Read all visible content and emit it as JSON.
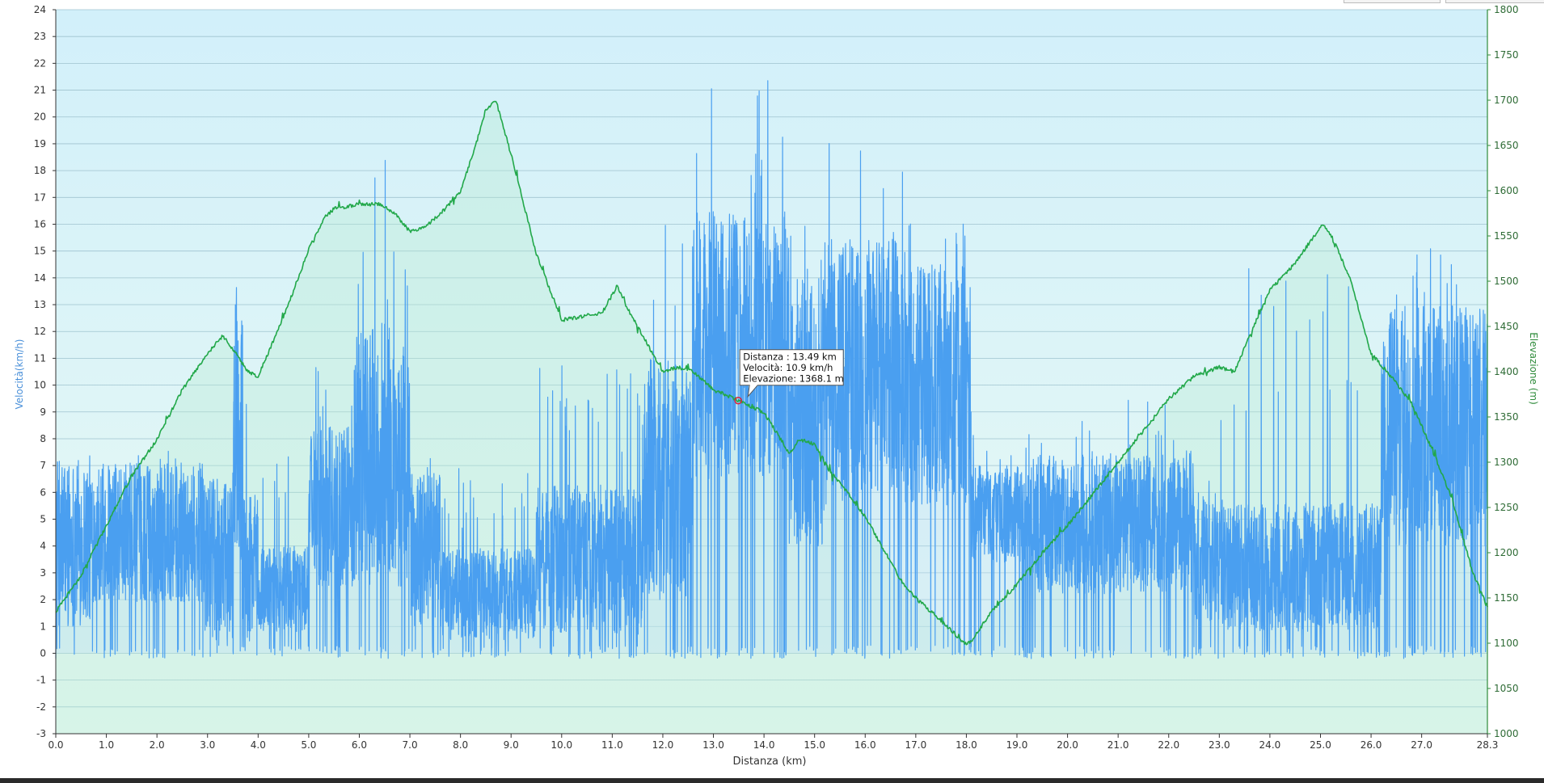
{
  "chart_data": {
    "type": "line",
    "xlabel": "Distanza  (km)",
    "ylabel_left": "Velocità(km/h)",
    "ylabel_right": "Elevazione (m)",
    "x_ticks": [
      "0.0",
      "1.0",
      "2.0",
      "3.0",
      "4.0",
      "5.0",
      "6.0",
      "7.0",
      "8.0",
      "9.0",
      "10.0",
      "11.0",
      "12.0",
      "13.0",
      "14.0",
      "15.0",
      "16.0",
      "17.0",
      "18.0",
      "19.0",
      "20.0",
      "21.0",
      "22.0",
      "23.0",
      "24.0",
      "25.0",
      "26.0",
      "27.0",
      "28.3"
    ],
    "xlim": [
      0,
      28.3
    ],
    "ylim_left": [
      -3,
      24
    ],
    "ylim_right": [
      1000,
      1800
    ],
    "grid": true,
    "colors": {
      "speed": "#4a9ff0",
      "elevation": "#22a84a",
      "plot_bg_top": "#d2f0fa",
      "plot_bg_bottom": "#e8f9f4",
      "left_axis": "#4a90d9",
      "right_axis": "#2e8b3a"
    },
    "series": [
      {
        "name": "Elevazione",
        "axis": "right",
        "x": [
          0,
          0.5,
          1,
          1.5,
          2,
          2.5,
          3,
          3.3,
          3.5,
          3.8,
          4,
          4.5,
          5,
          5.3,
          5.5,
          6,
          6.4,
          6.7,
          7,
          7.3,
          7.7,
          8,
          8.3,
          8.5,
          8.7,
          9,
          9.5,
          10,
          10.3,
          10.8,
          11.1,
          11.3,
          11.6,
          12,
          12.3,
          12.6,
          13,
          13.5,
          14,
          14.5,
          14.7,
          15,
          15.3,
          15.6,
          16,
          16.3,
          16.7,
          17,
          17.5,
          18,
          18.1,
          18.5,
          19,
          19.5,
          20,
          20.5,
          21,
          21.5,
          22,
          22.5,
          23,
          23.3,
          23.6,
          24,
          24.5,
          25,
          25.1,
          25.3,
          25.6,
          26,
          26.4,
          26.8,
          27.2,
          27.6,
          28,
          28.3
        ],
        "y": [
          1135,
          1175,
          1230,
          1285,
          1325,
          1380,
          1420,
          1440,
          1425,
          1400,
          1395,
          1460,
          1535,
          1570,
          1580,
          1585,
          1585,
          1575,
          1555,
          1560,
          1580,
          1600,
          1650,
          1690,
          1700,
          1640,
          1530,
          1457,
          1460,
          1465,
          1495,
          1470,
          1440,
          1400,
          1405,
          1400,
          1380,
          1368,
          1355,
          1310,
          1325,
          1320,
          1290,
          1270,
          1240,
          1210,
          1170,
          1150,
          1125,
          1098,
          1103,
          1135,
          1165,
          1200,
          1230,
          1265,
          1300,
          1335,
          1370,
          1395,
          1405,
          1400,
          1440,
          1490,
          1520,
          1560,
          1560,
          1540,
          1500,
          1420,
          1395,
          1365,
          1315,
          1260,
          1180,
          1140
        ]
      },
      {
        "name": "Velocità",
        "axis": "left",
        "segments": [
          {
            "x0": 0.0,
            "x1": 0.7,
            "mean": 4.2,
            "spread": 3.2,
            "peak": 10.2
          },
          {
            "x0": 0.7,
            "x1": 2.9,
            "mean": 4.5,
            "spread": 2.6,
            "peak": 8.0
          },
          {
            "x0": 2.9,
            "x1": 3.5,
            "mean": 3.5,
            "spread": 3.0,
            "peak": 13.6
          },
          {
            "x0": 3.5,
            "x1": 3.7,
            "mean": 8.0,
            "spread": 4.5,
            "peak": 14.5
          },
          {
            "x0": 3.7,
            "x1": 4.0,
            "mean": 3.0,
            "spread": 3.0,
            "peak": 10.5
          },
          {
            "x0": 4.0,
            "x1": 5.0,
            "mean": 2.4,
            "spread": 1.6,
            "peak": 7.5
          },
          {
            "x0": 5.0,
            "x1": 5.9,
            "mean": 5.5,
            "spread": 3.0,
            "peak": 12.0
          },
          {
            "x0": 5.9,
            "x1": 6.6,
            "mean": 7.5,
            "spread": 5.0,
            "peak": 18.6
          },
          {
            "x0": 6.6,
            "x1": 7.0,
            "mean": 7.0,
            "spread": 4.5,
            "peak": 15.0
          },
          {
            "x0": 7.0,
            "x1": 7.6,
            "mean": 4.0,
            "spread": 3.0,
            "peak": 9.0
          },
          {
            "x0": 7.6,
            "x1": 9.5,
            "mean": 2.2,
            "spread": 1.7,
            "peak": 7.0
          },
          {
            "x0": 9.5,
            "x1": 11.6,
            "mean": 3.5,
            "spread": 2.8,
            "peak": 11.5
          },
          {
            "x0": 11.6,
            "x1": 12.6,
            "mean": 6.5,
            "spread": 4.5,
            "peak": 18.5
          },
          {
            "x0": 12.6,
            "x1": 14.5,
            "mean": 11.5,
            "spread": 5.0,
            "peak": 21.6
          },
          {
            "x0": 14.5,
            "x1": 15.2,
            "mean": 9.0,
            "spread": 5.0,
            "peak": 16.5
          },
          {
            "x0": 15.2,
            "x1": 16.8,
            "mean": 10.5,
            "spread": 5.0,
            "peak": 19.7
          },
          {
            "x0": 16.8,
            "x1": 18.1,
            "mean": 10.0,
            "spread": 4.5,
            "peak": 17.2
          },
          {
            "x0": 18.1,
            "x1": 19.3,
            "mean": 5.2,
            "spread": 1.8,
            "peak": 8.5
          },
          {
            "x0": 19.3,
            "x1": 22.5,
            "mean": 4.8,
            "spread": 2.6,
            "peak": 9.5
          },
          {
            "x0": 22.5,
            "x1": 23.1,
            "mean": 3.5,
            "spread": 2.5,
            "peak": 9.0
          },
          {
            "x0": 23.1,
            "x1": 26.2,
            "mean": 3.2,
            "spread": 2.4,
            "peak": 14.7
          },
          {
            "x0": 26.2,
            "x1": 28.3,
            "mean": 8.5,
            "spread": 4.5,
            "peak": 15.4
          }
        ]
      }
    ],
    "tooltip": {
      "distance_line": "Distanza : 13.49 km",
      "speed_line": "Velocità: 10.9 km/h",
      "elevation_line": "Elevazione: 1368.1 m",
      "x": 13.49,
      "elevation": 1368.1
    }
  }
}
